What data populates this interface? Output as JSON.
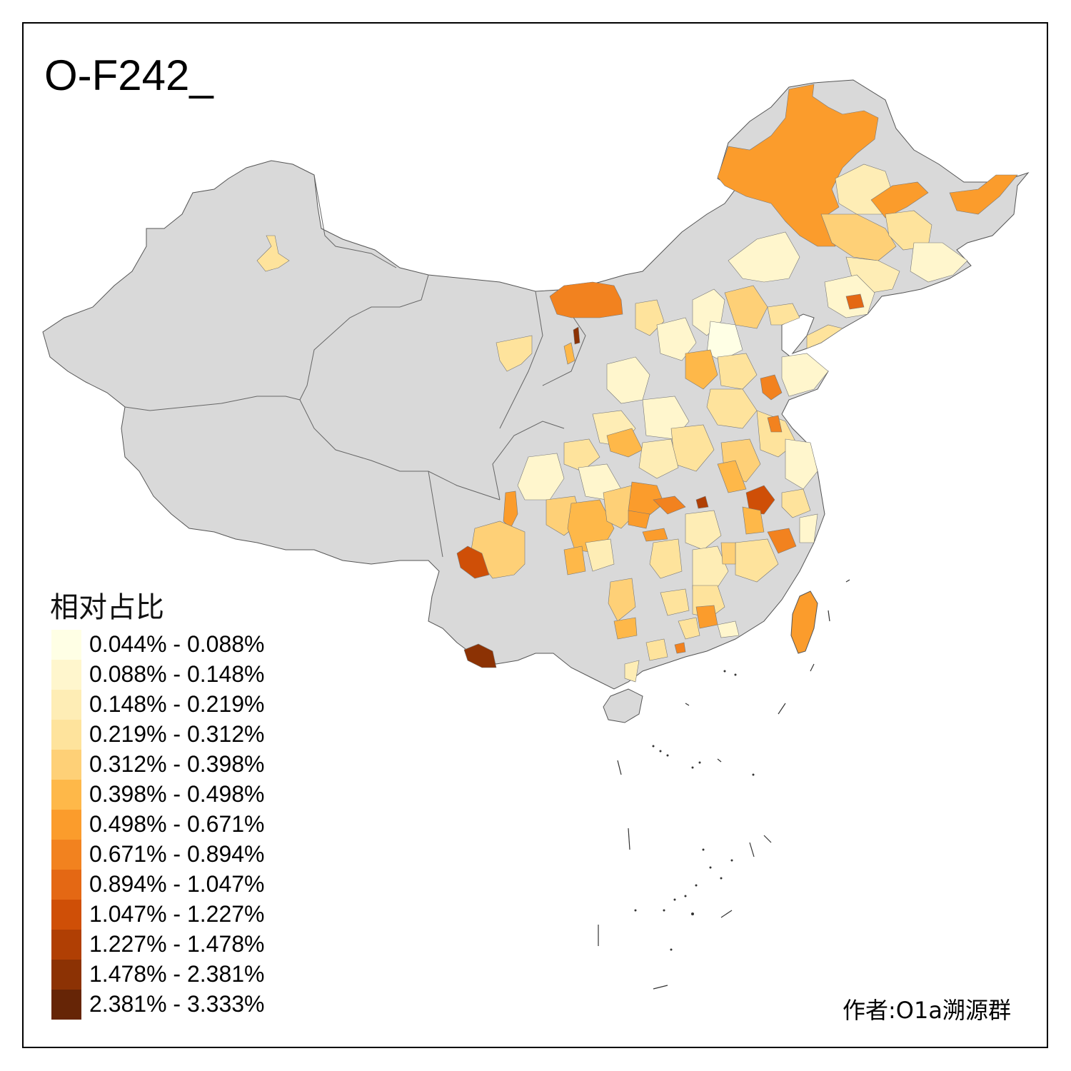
{
  "title": "O-F242_",
  "legend": {
    "title": "相对占比",
    "items": [
      {
        "label": "0.044% - 0.088%",
        "color": "#FFFFE5"
      },
      {
        "label": "0.088% - 0.148%",
        "color": "#FFF6CD"
      },
      {
        "label": "0.148% - 0.219%",
        "color": "#FEEDB5"
      },
      {
        "label": "0.219% - 0.312%",
        "color": "#FEE39C"
      },
      {
        "label": "0.312% - 0.398%",
        "color": "#FED077"
      },
      {
        "label": "0.398% - 0.498%",
        "color": "#FEB849"
      },
      {
        "label": "0.498% - 0.671%",
        "color": "#FB9C2C"
      },
      {
        "label": "0.671% - 0.894%",
        "color": "#F2821F"
      },
      {
        "label": "0.894% - 1.047%",
        "color": "#E46814"
      },
      {
        "label": "1.047% - 1.227%",
        "color": "#CF4F07"
      },
      {
        "label": "1.227% - 1.478%",
        "color": "#B03F04"
      },
      {
        "label": "1.478% - 2.381%",
        "color": "#8C3204"
      },
      {
        "label": "2.381% - 3.333%",
        "color": "#662506"
      }
    ]
  },
  "credit": "作者:O1a溯源群",
  "colors": {
    "no_data": "#D9D9D9",
    "border": "#555555",
    "frame": "#000000"
  }
}
